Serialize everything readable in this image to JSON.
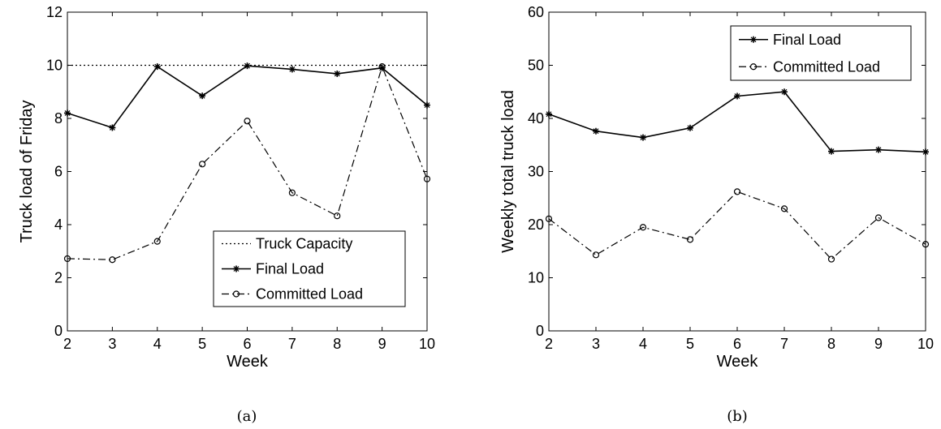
{
  "chart_data": [
    {
      "type": "line",
      "caption": "(a)",
      "xlabel": "Week",
      "ylabel": "Truck load of Friday",
      "xlim": [
        2,
        10
      ],
      "ylim": [
        0,
        12
      ],
      "xticks": [
        2,
        3,
        4,
        5,
        6,
        7,
        8,
        9,
        10
      ],
      "yticks": [
        0,
        2,
        4,
        6,
        8,
        10,
        12
      ],
      "grid": false,
      "legend_position": "bottom-right",
      "x": [
        2,
        3,
        4,
        5,
        6,
        7,
        8,
        9,
        10
      ],
      "series": [
        {
          "name": "Truck Capacity",
          "style": "dotted",
          "marker": "none",
          "values": [
            10,
            10,
            10,
            10,
            10,
            10,
            10,
            10,
            10
          ]
        },
        {
          "name": "Final Load",
          "style": "solid",
          "marker": "star",
          "values": [
            8.2,
            7.65,
            9.95,
            8.85,
            9.98,
            9.85,
            9.68,
            9.9,
            8.5
          ]
        },
        {
          "name": "Committed Load",
          "style": "dashdot",
          "marker": "circle",
          "values": [
            2.72,
            2.68,
            3.37,
            6.28,
            7.9,
            5.2,
            4.33,
            9.95,
            5.72
          ]
        }
      ]
    },
    {
      "type": "line",
      "caption": "(b)",
      "xlabel": "Week",
      "ylabel": "Weekly total truck load",
      "xlim": [
        2,
        10
      ],
      "ylim": [
        0,
        60
      ],
      "xticks": [
        2,
        3,
        4,
        5,
        6,
        7,
        8,
        9,
        10
      ],
      "yticks": [
        0,
        10,
        20,
        30,
        40,
        50,
        60
      ],
      "grid": false,
      "legend_position": "top-right",
      "x": [
        2,
        3,
        4,
        5,
        6,
        7,
        8,
        9,
        10
      ],
      "series": [
        {
          "name": "Final Load",
          "style": "solid",
          "marker": "star",
          "values": [
            40.8,
            37.6,
            36.4,
            38.2,
            44.2,
            45.0,
            33.8,
            34.1,
            33.7
          ]
        },
        {
          "name": "Committed Load",
          "style": "dashdot",
          "marker": "circle",
          "values": [
            21.1,
            14.3,
            19.5,
            17.2,
            26.2,
            23.0,
            13.5,
            21.3,
            16.3
          ]
        }
      ]
    }
  ]
}
